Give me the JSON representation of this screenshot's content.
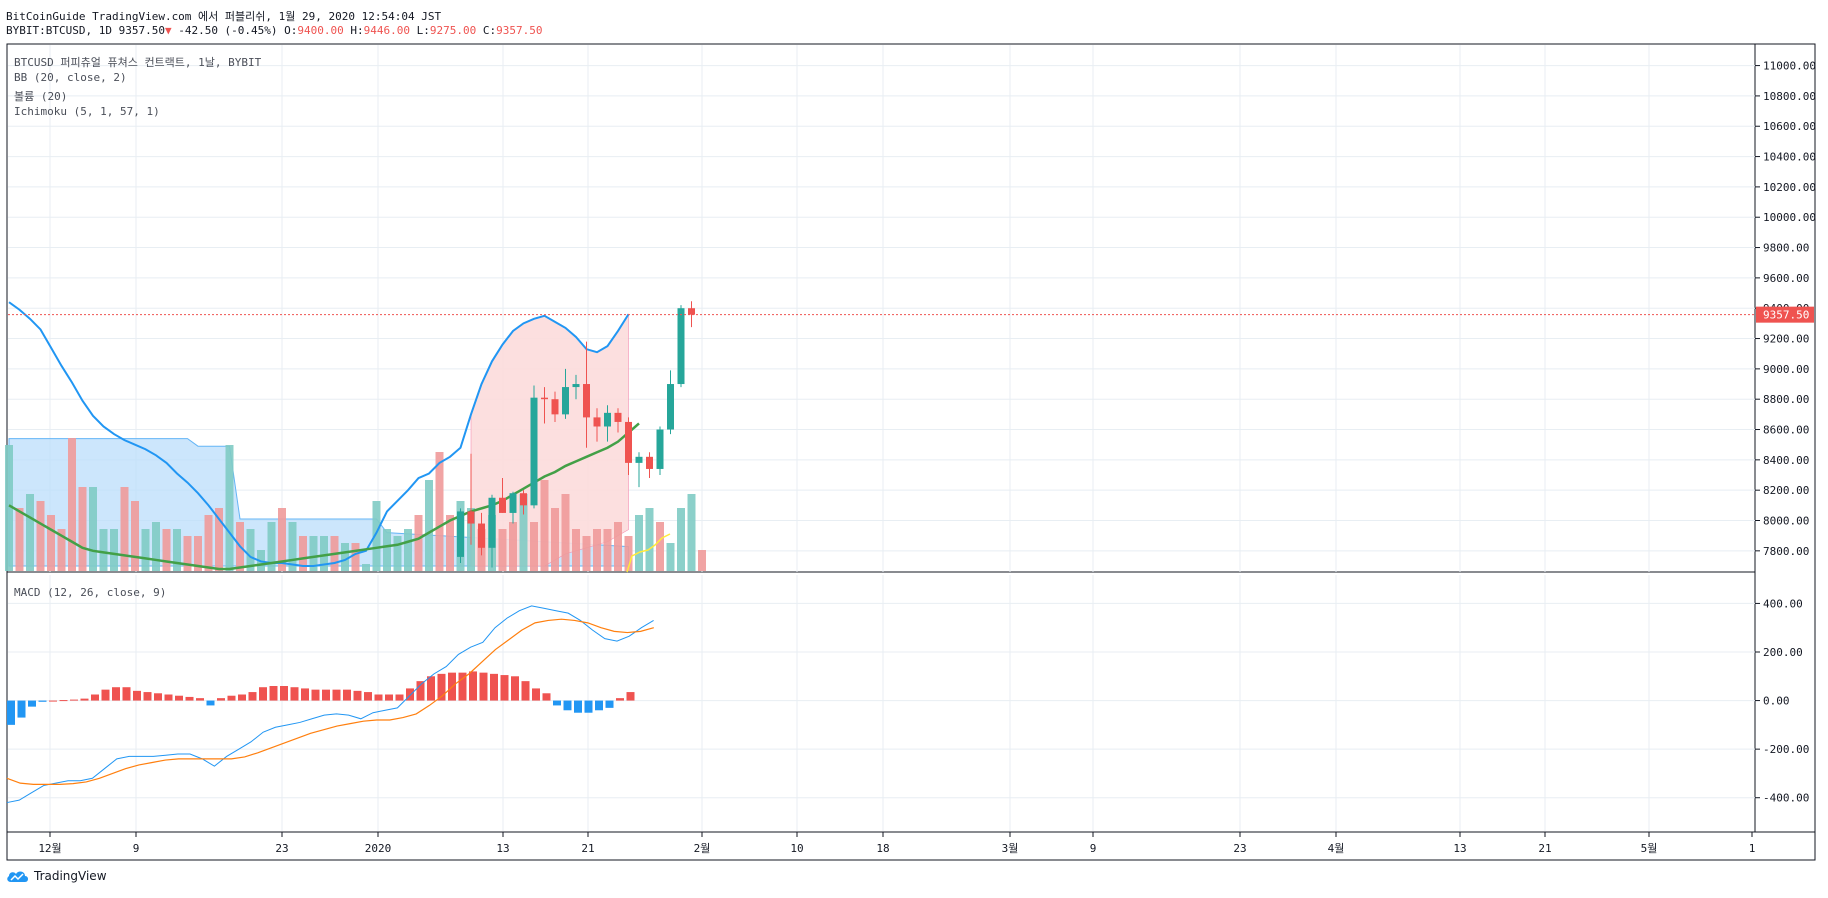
{
  "header": {
    "publish_line": "BitCoinGuide TradingView.com 에서 퍼블리쉬, 1월 29, 2020 12:54:04 JST",
    "symbol": "BYBIT:BTCUSD, 1D",
    "last": "9357.50",
    "change": "-42.50 (-0.45%)",
    "o_label": "O:",
    "o_value": "9400.00",
    "h_label": "H:",
    "h_value": "9446.00",
    "l_label": "L:",
    "l_value": "9275.00",
    "c_label": "C:",
    "c_value": "9357.50"
  },
  "legend": {
    "title": "BTCUSD 퍼피츄얼 퓨쳐스 컨트랙트, 1날, BYBIT",
    "bb": "BB (20, close, 2)",
    "volume": "볼륨 (20)",
    "ichimoku": "Ichimoku (5, 1, 57, 1)",
    "macd": "MACD (12, 26, close, 9)"
  },
  "footer": {
    "brand": "TradingView"
  },
  "colors": {
    "up": "#26a69a",
    "down": "#ef5350",
    "bb_fill": "#fcdcdc",
    "cloud_fill": "#bbdefb",
    "blue": "#2196f3",
    "green": "#43a047",
    "orange": "#ff7f0e",
    "yellow": "#ffeb3b",
    "grid": "#e8eef3"
  },
  "chart_data": [
    {
      "type": "candlestick",
      "name": "price",
      "ylim": [
        7700,
        11050
      ],
      "y_ticks": [
        "11000.00",
        "10800.00",
        "10600.00",
        "10400.00",
        "10200.00",
        "10000.00",
        "9800.00",
        "9600.00",
        "9400.00",
        "9200.00",
        "9000.00",
        "8800.00",
        "8600.00",
        "8400.00",
        "8200.00",
        "8000.00",
        "7800.00"
      ],
      "last_price_label": "9357.50",
      "x_labels": [
        "12월",
        "9",
        "23",
        "2020",
        "13",
        "21",
        "2월",
        "10",
        "18",
        "3월",
        "9",
        "23",
        "4월",
        "13",
        "21",
        "5월",
        "1"
      ],
      "candles": [
        {
          "date": "2020-01-07",
          "o": 7760,
          "h": 8080,
          "l": 7720,
          "c": 8060
        },
        {
          "date": "2020-01-08",
          "o": 8060,
          "h": 8440,
          "l": 7840,
          "c": 7980
        },
        {
          "date": "2020-01-09",
          "o": 7980,
          "h": 8050,
          "l": 7770,
          "c": 7820
        },
        {
          "date": "2020-01-10",
          "o": 7820,
          "h": 8170,
          "l": 7690,
          "c": 8150
        },
        {
          "date": "2020-01-11",
          "o": 8150,
          "h": 8280,
          "l": 8050,
          "c": 8050
        },
        {
          "date": "2020-01-12",
          "o": 8050,
          "h": 8190,
          "l": 7980,
          "c": 8180
        },
        {
          "date": "2020-01-13",
          "o": 8180,
          "h": 8200,
          "l": 8040,
          "c": 8100
        },
        {
          "date": "2020-01-14",
          "o": 8100,
          "h": 8890,
          "l": 8080,
          "c": 8810
        },
        {
          "date": "2020-01-15",
          "o": 8810,
          "h": 8880,
          "l": 8640,
          "c": 8800
        },
        {
          "date": "2020-01-16",
          "o": 8800,
          "h": 8850,
          "l": 8650,
          "c": 8700
        },
        {
          "date": "2020-01-17",
          "o": 8700,
          "h": 9000,
          "l": 8670,
          "c": 8880
        },
        {
          "date": "2020-01-18",
          "o": 8880,
          "h": 8960,
          "l": 8800,
          "c": 8900
        },
        {
          "date": "2020-01-19",
          "o": 8900,
          "h": 9180,
          "l": 8480,
          "c": 8680
        },
        {
          "date": "2020-01-20",
          "o": 8680,
          "h": 8740,
          "l": 8520,
          "c": 8620
        },
        {
          "date": "2020-01-21",
          "o": 8620,
          "h": 8760,
          "l": 8520,
          "c": 8710
        },
        {
          "date": "2020-01-22",
          "o": 8710,
          "h": 8740,
          "l": 8580,
          "c": 8650
        },
        {
          "date": "2020-01-23",
          "o": 8650,
          "h": 8680,
          "l": 8300,
          "c": 8380
        },
        {
          "date": "2020-01-24",
          "o": 8380,
          "h": 8450,
          "l": 8220,
          "c": 8420
        },
        {
          "date": "2020-01-25",
          "o": 8420,
          "h": 8450,
          "l": 8280,
          "c": 8340
        },
        {
          "date": "2020-01-26",
          "o": 8340,
          "h": 8620,
          "l": 8300,
          "c": 8600
        },
        {
          "date": "2020-01-27",
          "o": 8600,
          "h": 8990,
          "l": 8570,
          "c": 8900
        },
        {
          "date": "2020-01-28",
          "o": 8900,
          "h": 9420,
          "l": 8880,
          "c": 9400
        },
        {
          "date": "2020-01-29",
          "o": 9400,
          "h": 9446,
          "l": 9275,
          "c": 9357.5
        }
      ],
      "bb_upper": [
        9440,
        9390,
        9330,
        9260,
        9140,
        9020,
        8910,
        8790,
        8690,
        8620,
        8570,
        8530,
        8500,
        8470,
        8430,
        8380,
        8310,
        8250,
        8180,
        8100,
        8010,
        7920,
        7830,
        7760,
        7730,
        7720,
        7720,
        7710,
        7700,
        7700,
        7710,
        7720,
        7740,
        7780,
        7800,
        7920,
        8060,
        8130,
        8200,
        8280,
        8310,
        8380,
        8420,
        8480,
        8700,
        8900,
        9050,
        9160,
        9250,
        9300,
        9330,
        9350,
        9310,
        9270,
        9210,
        9130,
        9110,
        9150,
        9250,
        9360
      ],
      "bb_basis": [
        8100,
        8060,
        8020,
        7980,
        7940,
        7900,
        7860,
        7820,
        7800,
        7790,
        7780,
        7770,
        7760,
        7750,
        7740,
        7730,
        7720,
        7710,
        7700,
        7690,
        7680,
        7680,
        7690,
        7700,
        7710,
        7720,
        7730,
        7740,
        7750,
        7760,
        7770,
        7780,
        7790,
        7800,
        7810,
        7820,
        7830,
        7840,
        7860,
        7880,
        7920,
        7960,
        8000,
        8030,
        8060,
        8080,
        8100,
        8130,
        8170,
        8210,
        8250,
        8290,
        8320,
        8360,
        8390,
        8420,
        8450,
        8480,
        8520,
        8580,
        8640
      ],
      "bb_lower": [
        7420,
        7400,
        7380,
        7360,
        7350,
        7340,
        7330,
        7320,
        7310,
        7300,
        7300,
        7300,
        7300,
        7300,
        7300,
        7300,
        7300,
        7300,
        7300,
        7300,
        7300,
        7300,
        7300,
        7300,
        7300,
        7300,
        7300,
        7300,
        7300,
        7300,
        7300,
        7300,
        7300,
        7300,
        7300,
        7300,
        7300,
        7300,
        7300,
        7300,
        7320,
        7340,
        7360,
        7380,
        7400,
        7420,
        7460,
        7500,
        7560,
        7600,
        7640,
        7700,
        7740,
        7780,
        7800,
        7820,
        7840,
        7860,
        7900,
        7940,
        7980
      ],
      "volume": [
        {
          "v": 0.9,
          "up": true
        },
        {
          "v": 0.45,
          "up": false
        },
        {
          "v": 0.55,
          "up": true
        },
        {
          "v": 0.5,
          "up": false
        },
        {
          "v": 0.4,
          "up": false
        },
        {
          "v": 0.3,
          "up": false
        },
        {
          "v": 0.95,
          "up": false
        },
        {
          "v": 0.6,
          "up": false
        },
        {
          "v": 0.6,
          "up": true
        },
        {
          "v": 0.3,
          "up": true
        },
        {
          "v": 0.3,
          "up": true
        },
        {
          "v": 0.6,
          "up": false
        },
        {
          "v": 0.5,
          "up": false
        },
        {
          "v": 0.3,
          "up": true
        },
        {
          "v": 0.35,
          "up": true
        },
        {
          "v": 0.3,
          "up": false
        },
        {
          "v": 0.3,
          "up": true
        },
        {
          "v": 0.25,
          "up": false
        },
        {
          "v": 0.25,
          "up": false
        },
        {
          "v": 0.4,
          "up": false
        },
        {
          "v": 0.45,
          "up": false
        },
        {
          "v": 0.9,
          "up": true
        },
        {
          "v": 0.35,
          "up": false
        },
        {
          "v": 0.3,
          "up": true
        },
        {
          "v": 0.15,
          "up": true
        },
        {
          "v": 0.35,
          "up": true
        },
        {
          "v": 0.45,
          "up": false
        },
        {
          "v": 0.35,
          "up": true
        },
        {
          "v": 0.25,
          "up": false
        },
        {
          "v": 0.25,
          "up": true
        },
        {
          "v": 0.25,
          "up": true
        },
        {
          "v": 0.25,
          "up": false
        },
        {
          "v": 0.2,
          "up": true
        },
        {
          "v": 0.2,
          "up": false
        },
        {
          "v": 0.05,
          "up": true
        },
        {
          "v": 0.5,
          "up": true
        },
        {
          "v": 0.3,
          "up": true
        },
        {
          "v": 0.25,
          "up": true
        },
        {
          "v": 0.3,
          "up": true
        },
        {
          "v": 0.4,
          "up": false
        },
        {
          "v": 0.65,
          "up": true
        },
        {
          "v": 0.85,
          "up": false
        },
        {
          "v": 0.4,
          "up": false
        },
        {
          "v": 0.5,
          "up": true
        },
        {
          "v": 0.45,
          "up": true
        },
        {
          "v": 0.3,
          "up": false
        },
        {
          "v": 0.4,
          "up": true
        },
        {
          "v": 0.3,
          "up": false
        },
        {
          "v": 0.35,
          "up": false
        },
        {
          "v": 0.55,
          "up": true
        },
        {
          "v": 0.35,
          "up": false
        },
        {
          "v": 0.65,
          "up": false
        },
        {
          "v": 0.45,
          "up": false
        },
        {
          "v": 0.55,
          "up": false
        },
        {
          "v": 0.3,
          "up": false
        },
        {
          "v": 0.25,
          "up": false
        },
        {
          "v": 0.3,
          "up": false
        },
        {
          "v": 0.3,
          "up": false
        },
        {
          "v": 0.35,
          "up": false
        },
        {
          "v": 0.25,
          "up": false
        },
        {
          "v": 0.4,
          "up": true
        },
        {
          "v": 0.45,
          "up": true
        },
        {
          "v": 0.35,
          "up": false
        },
        {
          "v": 0.2,
          "up": true
        },
        {
          "v": 0.45,
          "up": true
        },
        {
          "v": 0.55,
          "up": true
        },
        {
          "v": 0.15,
          "up": false
        }
      ]
    },
    {
      "type": "line+bar",
      "name": "MACD",
      "ylim": [
        -500,
        480
      ],
      "y_ticks": [
        "400.00",
        "200.00",
        "0.00",
        "-200.00",
        "-400.00"
      ],
      "macd": [
        -420,
        -410,
        -380,
        -350,
        -340,
        -330,
        -330,
        -320,
        -280,
        -240,
        -230,
        -230,
        -230,
        -225,
        -220,
        -220,
        -240,
        -270,
        -230,
        -200,
        -170,
        -130,
        -110,
        -100,
        -90,
        -75,
        -60,
        -55,
        -60,
        -75,
        -50,
        -40,
        -30,
        20,
        70,
        110,
        140,
        190,
        220,
        240,
        300,
        340,
        370,
        390,
        380,
        370,
        360,
        330,
        290,
        255,
        245,
        265,
        300,
        330
      ],
      "signal": [
        -320,
        -340,
        -345,
        -345,
        -345,
        -342,
        -335,
        -320,
        -300,
        -280,
        -265,
        -255,
        -245,
        -240,
        -240,
        -240,
        -240,
        -240,
        -232,
        -215,
        -195,
        -175,
        -155,
        -135,
        -120,
        -105,
        -95,
        -85,
        -80,
        -80,
        -70,
        -55,
        -20,
        20,
        70,
        110,
        160,
        210,
        250,
        290,
        320,
        330,
        335,
        330,
        320,
        300,
        285,
        280,
        285,
        300
      ],
      "hist": [
        -100,
        -70,
        -25,
        -5,
        0,
        2,
        4,
        8,
        25,
        45,
        55,
        55,
        40,
        35,
        30,
        25,
        20,
        15,
        10,
        -20,
        10,
        20,
        25,
        35,
        55,
        60,
        60,
        55,
        50,
        45,
        45,
        45,
        45,
        40,
        35,
        25,
        25,
        25,
        50,
        80,
        100,
        110,
        115,
        115,
        120,
        115,
        110,
        105,
        100,
        80,
        50,
        30,
        -20,
        -40,
        -50,
        -50,
        -40,
        -30,
        10,
        35
      ]
    }
  ]
}
